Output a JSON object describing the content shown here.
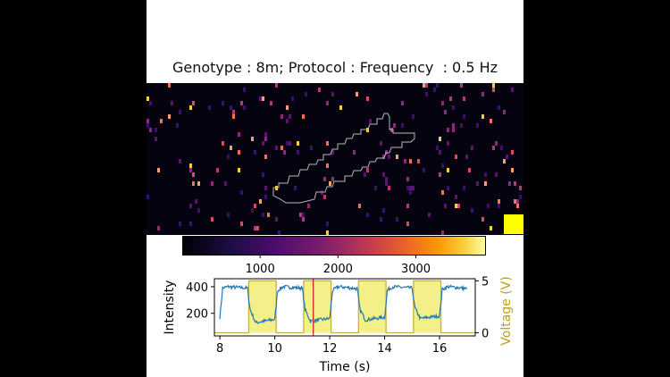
{
  "title": "Genotype : 8m; Protocol : Frequency  : 0.5 Hz",
  "colors": {
    "signal": "#1f77b4",
    "stimulus_fill": "#f3f08a",
    "stimulus_edge": "#c8b040",
    "voltage_axis": "#b8a020",
    "marker_line": "#d62728",
    "marker_square": "#ffff00"
  },
  "colorbar": {
    "colormap": "inferno-like",
    "ticks": [
      "1000",
      "2000",
      "3000"
    ],
    "tick_values": [
      1000,
      2000,
      3000
    ],
    "range": [
      0,
      3900
    ]
  },
  "chart_data": {
    "type": "line",
    "xlabel": "Time (s)",
    "ylabel": "Intensity",
    "y2label": "Voltage (V)",
    "xlim": [
      7.8,
      17.3
    ],
    "ylim": [
      30,
      460
    ],
    "y2lim": [
      -0.3,
      5.2
    ],
    "xticks": [
      "8",
      "10",
      "12",
      "14",
      "16"
    ],
    "xtick_values": [
      8,
      10,
      12,
      14,
      16
    ],
    "yticks": [
      "200",
      "400"
    ],
    "ytick_values": [
      200,
      400
    ],
    "y2ticks": [
      "0",
      "5"
    ],
    "y2tick_values": [
      0,
      5
    ],
    "stimulus_on": [
      [
        9.05,
        10.05
      ],
      [
        11.05,
        12.05
      ],
      [
        13.05,
        14.05
      ],
      [
        15.05,
        16.05
      ]
    ],
    "stimulus_voltage": 5,
    "red_line_x": 11.4,
    "series": [
      {
        "values_x": [
          8.0,
          8.1,
          8.3,
          8.6,
          9.0,
          9.1,
          9.3,
          9.6,
          10.0,
          10.1,
          10.3,
          10.6,
          11.0,
          11.1,
          11.3,
          11.6,
          12.0,
          12.1,
          12.3,
          12.6,
          13.0,
          13.1,
          13.3,
          13.6,
          14.0,
          14.1,
          14.3,
          14.6,
          15.0,
          15.1,
          15.3,
          15.6,
          16.0,
          16.1,
          16.3,
          16.6,
          17.0
        ],
        "values_y": [
          170,
          390,
          400,
          395,
          390,
          230,
          130,
          140,
          155,
          370,
          400,
          395,
          390,
          230,
          140,
          150,
          160,
          370,
          400,
          395,
          385,
          230,
          150,
          160,
          170,
          375,
          400,
          395,
          390,
          240,
          160,
          170,
          180,
          380,
          400,
          395,
          385
        ]
      }
    ]
  }
}
